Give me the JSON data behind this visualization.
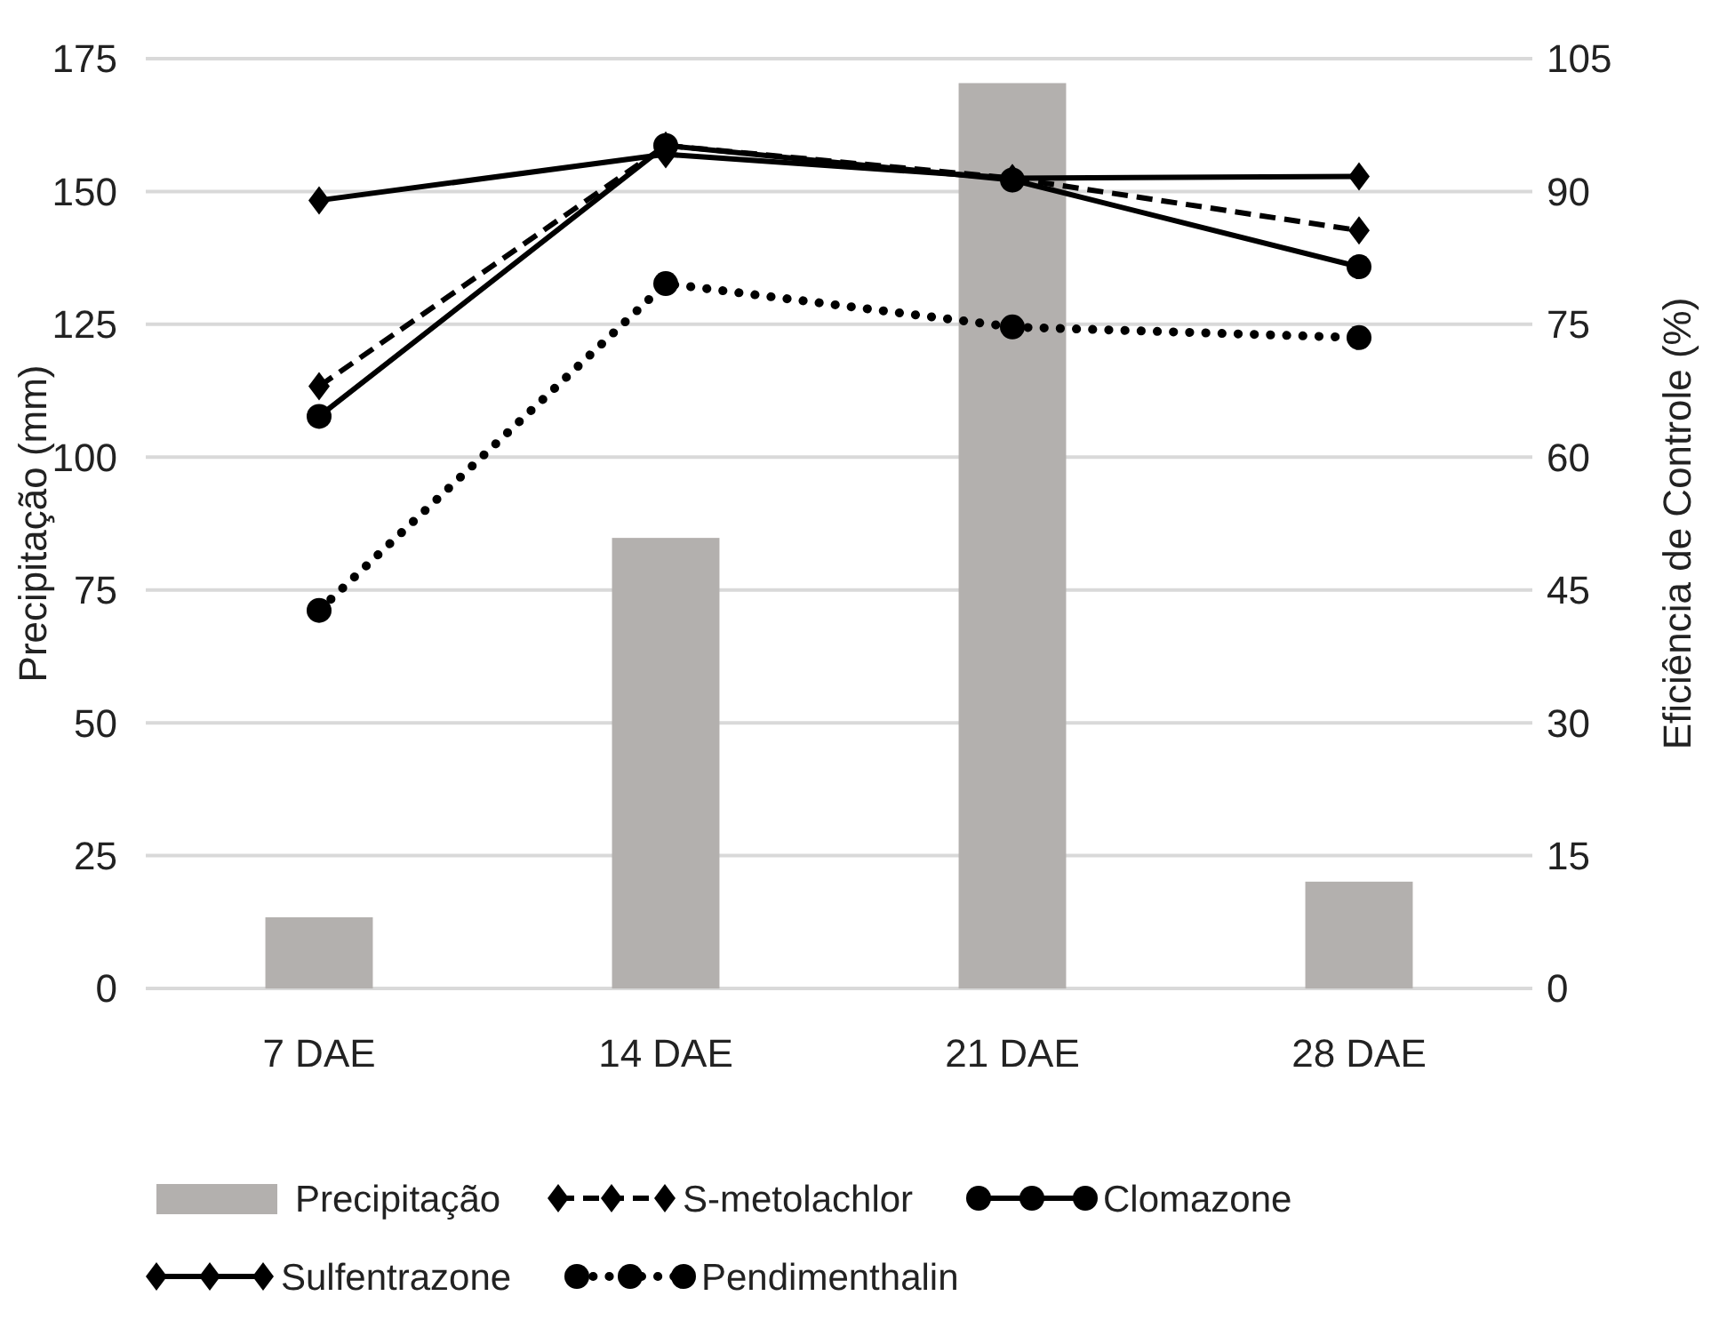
{
  "chart_data": {
    "type": "bar",
    "categories": [
      "7 DAE",
      "14 DAE",
      "21 DAE",
      "28 DAE"
    ],
    "ylabel": "Precipitação (mm)",
    "y2label": "Eficiência de Controle (%)",
    "ylim": [
      0,
      175
    ],
    "yticks": [
      0,
      25,
      50,
      75,
      100,
      125,
      150,
      175
    ],
    "y2lim": [
      0,
      105
    ],
    "y2ticks": [
      0,
      15,
      30,
      45,
      60,
      75,
      90,
      105
    ],
    "grid": "y",
    "legend": "bottom",
    "series": [
      {
        "name": "Precipitação",
        "color": "#b3b0ae",
        "values": [
          13.4,
          84.8,
          170.4,
          20.1
        ]
      },
      {
        "name": "S-metolachlor",
        "type": "line",
        "axis": "y2",
        "color": "#000000",
        "marker": "diamond",
        "line_style": "dashed",
        "values": [
          68,
          95.2,
          91.5,
          85.6
        ]
      },
      {
        "name": "Clomazone",
        "type": "line",
        "axis": "y2",
        "color": "#000000",
        "marker": "circle",
        "line_style": "solid",
        "values": [
          64.6,
          95.2,
          91.3,
          81.5
        ]
      },
      {
        "name": "Sulfentrazone",
        "type": "line",
        "axis": "y2",
        "color": "#000000",
        "marker": "diamond",
        "line_style": "solid",
        "values": [
          89,
          94.2,
          91.5,
          91.7
        ]
      },
      {
        "name": "Pendimenthalin",
        "type": "line",
        "axis": "y2",
        "color": "#000000",
        "marker": "circle",
        "line_style": "dotted",
        "values": [
          42.7,
          79.6,
          74.7,
          73.5
        ]
      }
    ]
  }
}
